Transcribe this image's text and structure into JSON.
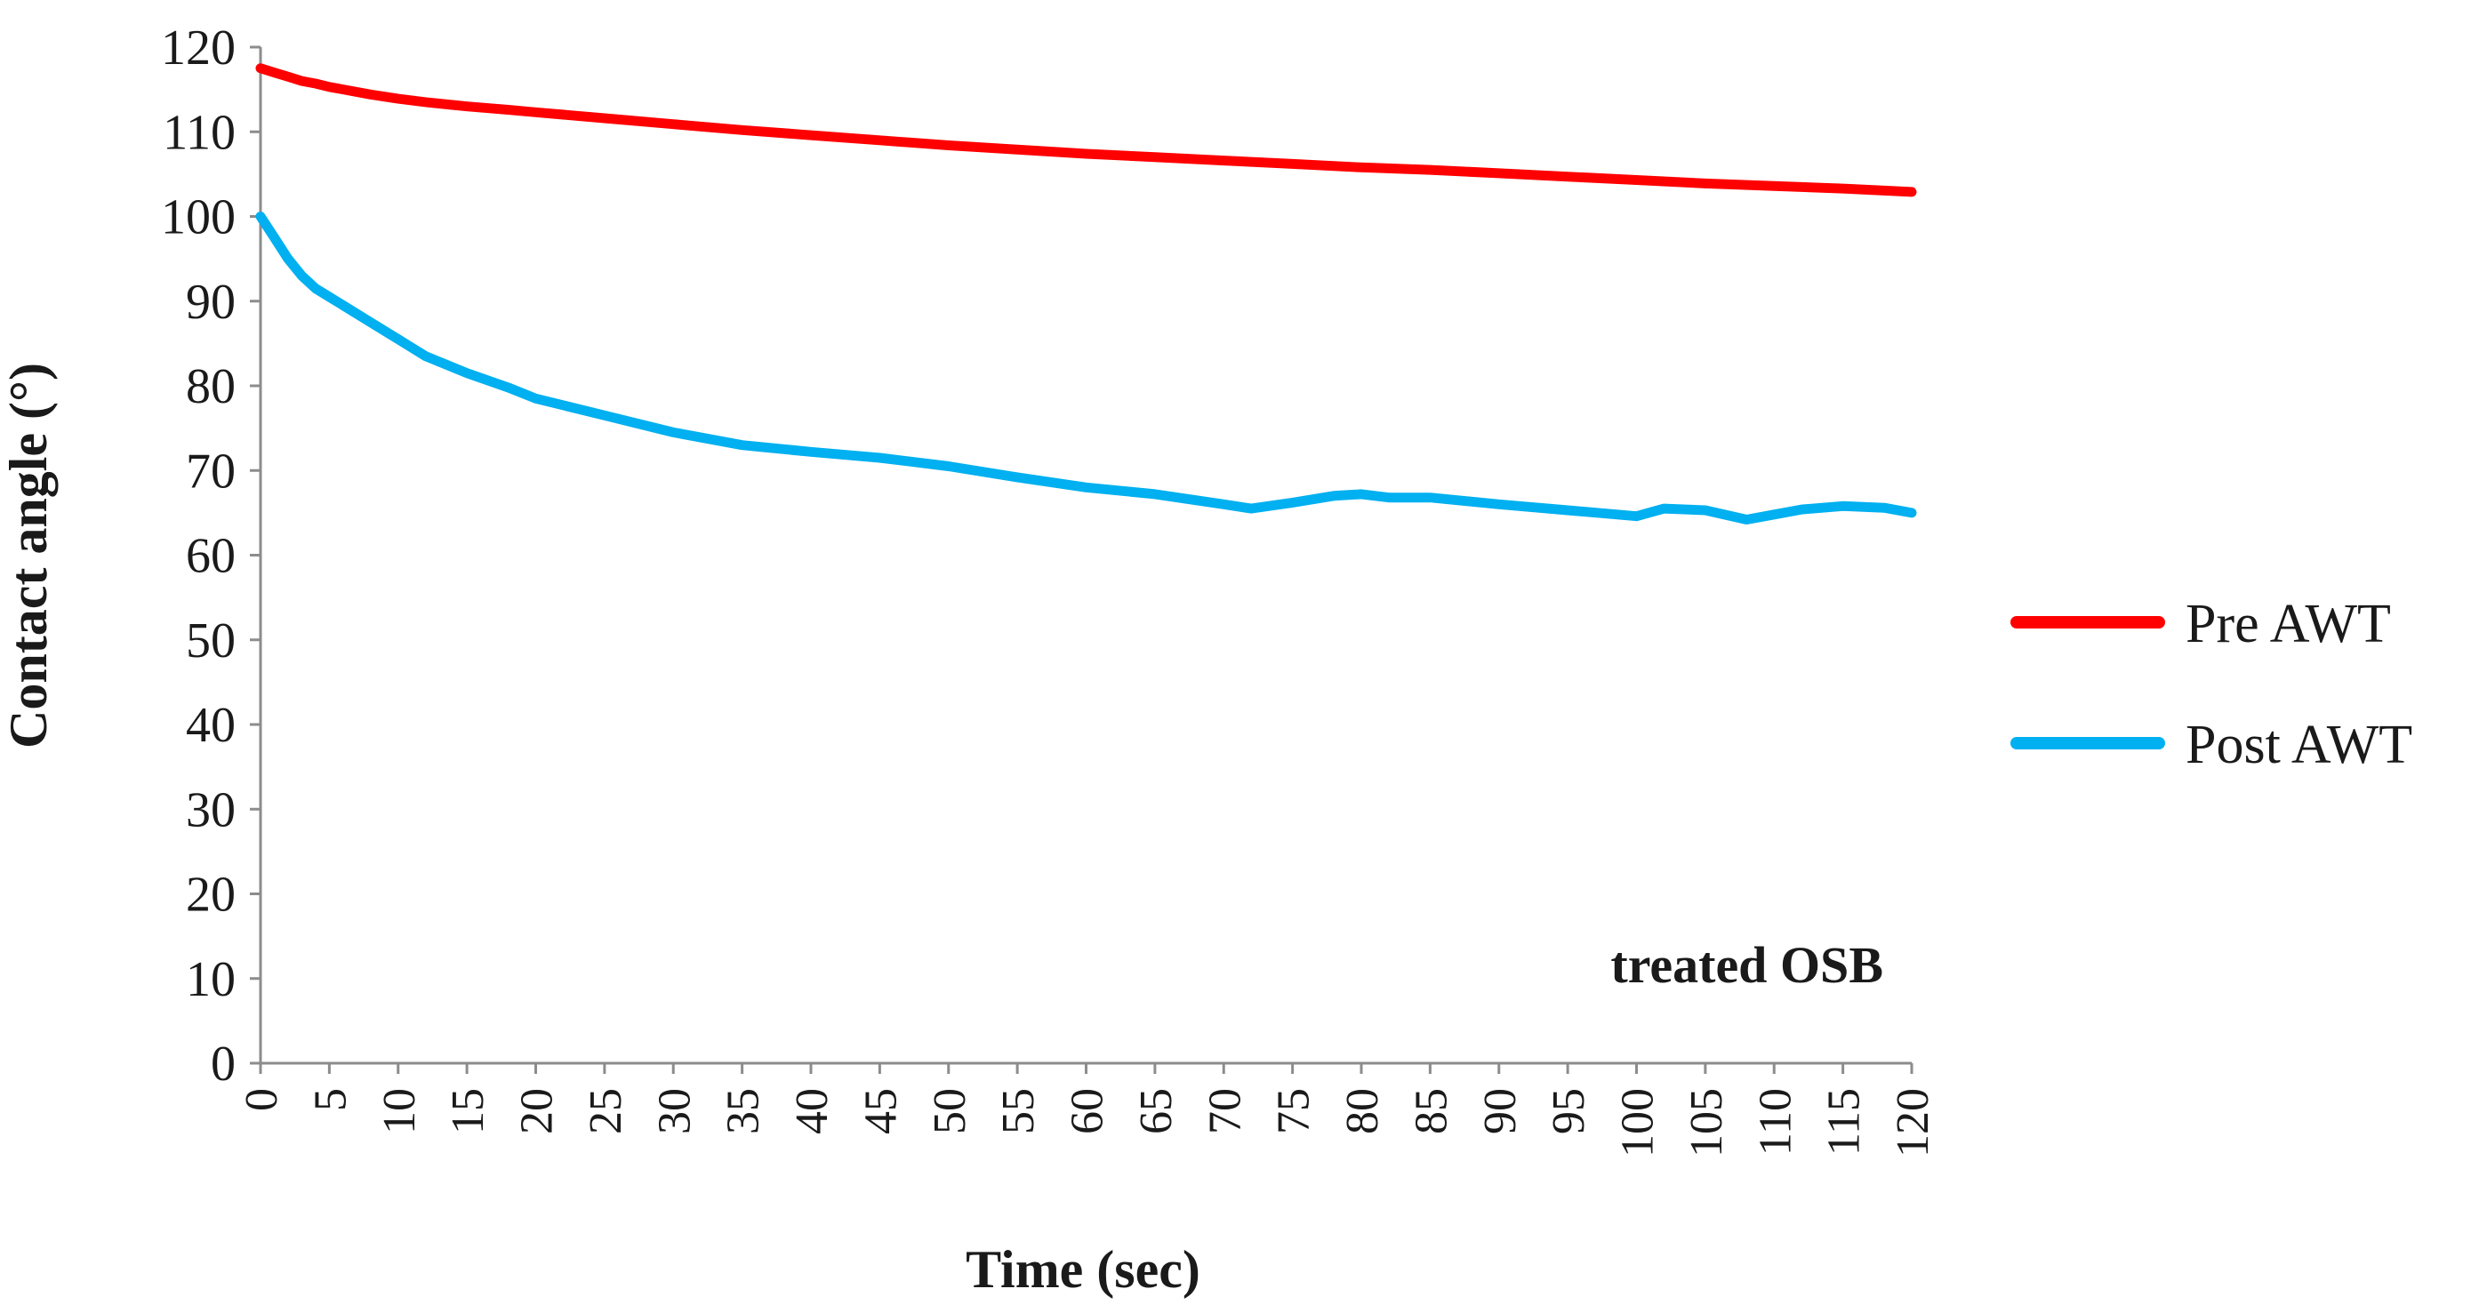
{
  "chart_data": {
    "type": "line",
    "title": "",
    "xlabel": "Time (sec)",
    "ylabel": "Contact angle (°)",
    "xlim": [
      0,
      120
    ],
    "ylim": [
      0,
      120
    ],
    "x_ticks": [
      "0",
      "5",
      "10",
      "15",
      "20",
      "25",
      "30",
      "35",
      "40",
      "45",
      "50",
      "55",
      "60",
      "65",
      "70",
      "75",
      "80",
      "85",
      "90",
      "95",
      "100",
      "105",
      "110",
      "115",
      "120"
    ],
    "y_ticks": [
      "0",
      "10",
      "20",
      "30",
      "40",
      "50",
      "60",
      "70",
      "80",
      "90",
      "100",
      "110",
      "120"
    ],
    "grid": false,
    "legend_position": "right",
    "annotation": "treated OSB",
    "series": [
      {
        "name": "Pre AWT",
        "color": "#ff0000",
        "x": [
          0,
          1,
          2,
          3,
          4,
          5,
          6,
          8,
          10,
          12,
          15,
          18,
          20,
          25,
          30,
          35,
          40,
          45,
          50,
          55,
          60,
          65,
          70,
          75,
          80,
          85,
          90,
          95,
          100,
          105,
          110,
          115,
          120
        ],
        "y": [
          117.5,
          117,
          116.5,
          116,
          115.7,
          115.3,
          115,
          114.4,
          113.9,
          113.5,
          113,
          112.6,
          112.3,
          111.6,
          110.9,
          110.2,
          109.6,
          109,
          108.4,
          107.9,
          107.4,
          107,
          106.6,
          106.2,
          105.8,
          105.5,
          105.1,
          104.7,
          104.3,
          103.9,
          103.6,
          103.3,
          102.9
        ]
      },
      {
        "name": "Post AWT",
        "color": "#00b0f0",
        "x": [
          0,
          1,
          2,
          3,
          4,
          5,
          6,
          8,
          10,
          12,
          15,
          18,
          20,
          25,
          30,
          35,
          40,
          45,
          50,
          55,
          60,
          65,
          70,
          72,
          75,
          78,
          80,
          82,
          85,
          90,
          95,
          100,
          102,
          105,
          108,
          110,
          112,
          115,
          118,
          120
        ],
        "y": [
          100,
          97.5,
          95,
          93,
          91.5,
          90.5,
          89.5,
          87.5,
          85.5,
          83.5,
          81.5,
          79.8,
          78.5,
          76.5,
          74.5,
          73,
          72.2,
          71.5,
          70.5,
          69.2,
          68,
          67.2,
          66,
          65.5,
          66.2,
          67,
          67.2,
          66.8,
          66.8,
          66,
          65.3,
          64.6,
          65.5,
          65.3,
          64.2,
          64.8,
          65.4,
          65.8,
          65.6,
          65
        ]
      }
    ]
  }
}
